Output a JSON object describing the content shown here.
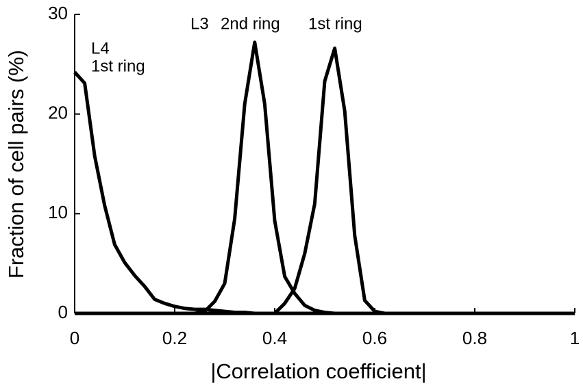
{
  "chart_data": {
    "type": "line",
    "x_label": "|Correlation coefficient|",
    "y_label": "Fraction of cell pairs (%)",
    "annotations": [
      "L4",
      "1st ring",
      "L3",
      "2nd ring",
      "1st ring"
    ],
    "x": [
      0,
      0.02,
      0.04,
      0.06,
      0.08,
      0.1,
      0.12,
      0.14,
      0.16,
      0.18,
      0.2,
      0.22,
      0.24,
      0.26,
      0.28,
      0.3,
      0.32,
      0.34,
      0.36,
      0.38,
      0.4,
      0.42,
      0.44,
      0.46,
      0.48,
      0.5,
      0.52,
      0.54,
      0.56,
      0.58,
      0.6,
      0.62,
      0.64,
      0.66,
      0.68,
      0.7,
      0.72,
      0.74,
      0.76,
      0.78,
      0.8,
      0.82,
      0.84,
      0.86,
      0.88,
      0.9,
      0.92,
      0.94,
      0.96,
      0.98,
      1
    ],
    "series": [
      {
        "color": "#000000",
        "values": [
          24.2,
          23.1,
          15.8,
          10.8,
          6.9,
          5.1,
          3.8,
          2.7,
          1.4,
          1.0,
          0.7,
          0.5,
          0.4,
          0.4,
          0.3,
          0.2,
          0.1,
          0.1,
          0,
          0,
          0,
          0,
          0,
          0,
          0,
          0,
          0,
          0,
          0,
          0,
          0,
          0,
          0,
          0,
          0,
          0,
          0,
          0,
          0,
          0,
          0,
          0,
          0,
          0,
          0,
          0,
          0,
          0,
          0,
          0,
          0
        ]
      },
      {
        "color": "#000000",
        "values": [
          0,
          0,
          0,
          0,
          0,
          0,
          0,
          0,
          0,
          0,
          0,
          0,
          0,
          0.2,
          1.2,
          3,
          9.5,
          21,
          27.2,
          21,
          9.3,
          3.7,
          2,
          0.8,
          0.3,
          0.1,
          0,
          0,
          0,
          0,
          0,
          0,
          0,
          0,
          0,
          0,
          0,
          0,
          0,
          0,
          0,
          0,
          0,
          0,
          0,
          0,
          0,
          0,
          0,
          0,
          0
        ]
      },
      {
        "color": "#000000",
        "values": [
          0,
          0,
          0,
          0,
          0,
          0,
          0,
          0,
          0,
          0,
          0,
          0,
          0,
          0,
          0,
          0,
          0,
          0,
          0,
          0,
          0,
          1,
          2.5,
          6,
          11,
          23.3,
          26.6,
          20.3,
          7.8,
          1.3,
          0.2,
          0,
          0,
          0,
          0,
          0,
          0,
          0,
          0,
          0,
          0,
          0,
          0,
          0,
          0,
          0,
          0,
          0,
          0,
          0,
          0
        ]
      }
    ],
    "xlim": [
      0,
      1
    ],
    "xticks": [
      0,
      0.2,
      0.4,
      0.6,
      0.8,
      1
    ],
    "ylim": [
      0,
      30
    ],
    "yticks": [
      0,
      10,
      20,
      30
    ],
    "grid": false
  }
}
